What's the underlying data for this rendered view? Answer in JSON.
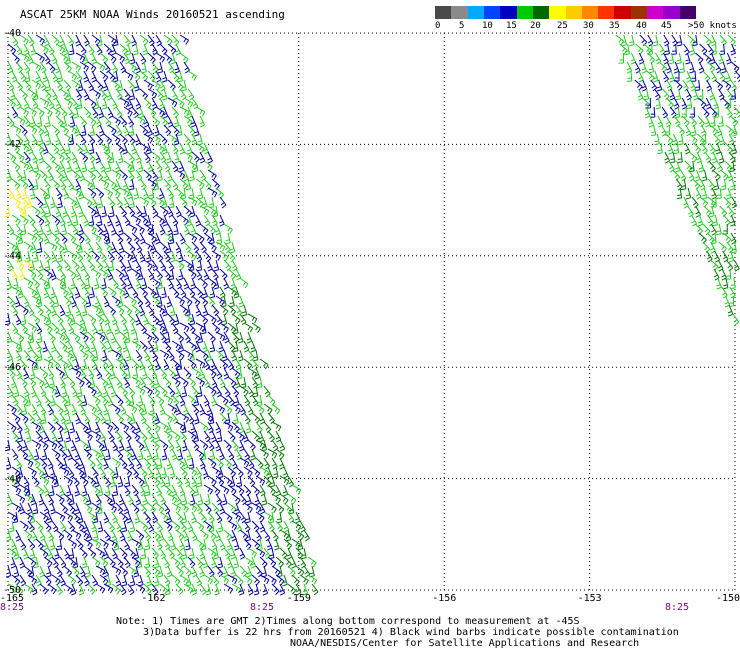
{
  "title": "ASCAT 25KM NOAA Winds 20160521 ascending",
  "legend": {
    "labels": [
      "0",
      "5",
      "10",
      "15",
      "20",
      "25",
      "30",
      "35",
      "40",
      "45",
      ">50 knots"
    ],
    "colors": [
      "#4a4a4a",
      "#8a8a8a",
      "#00aaff",
      "#0044ff",
      "#0000c0",
      "#00c800",
      "#006600",
      "#ffff00",
      "#ffcc00",
      "#ff8800",
      "#ff3300",
      "#cc0000",
      "#993300",
      "#cc00cc",
      "#9900cc",
      "#440066"
    ]
  },
  "axes": {
    "lat_labels": [
      "-40",
      "-42",
      "-44",
      "-46",
      "-48",
      "-50"
    ],
    "lon_labels": [
      "-165",
      "-162",
      "-159",
      "-156",
      "-153",
      "-150"
    ],
    "lat_range": [
      -50,
      -40
    ],
    "lon_range": [
      -165,
      -150
    ]
  },
  "swath_times": [
    "8:25",
    "8:25",
    "8:25"
  ],
  "notes": [
    "Note: 1) Times are GMT 2)Times along bottom correspond to measurement at -45S",
    "3)Data buffer is 22 hrs from 20160521 4) Black wind barbs indicate possible contamination",
    "NOAA/NESDIS/Center for Satellite Applications and Research"
  ],
  "barb_colors": {
    "dark_blue": "#0000a0",
    "green": "#22cc22",
    "dark_green": "#007700",
    "yellow": "#ffee00"
  }
}
